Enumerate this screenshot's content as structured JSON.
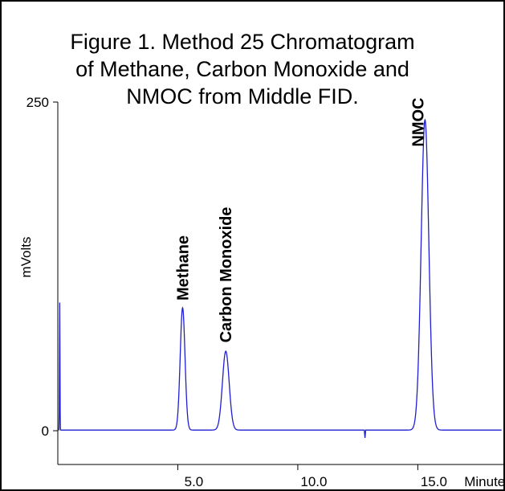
{
  "chart_data": {
    "type": "line",
    "title": "Figure 1. Method 25 Chromatogram of Methane, Carbon Monoxide and NMOC from Middle FID.",
    "title_lines": [
      "Figure 1. Method 25 Chromatogram",
      "of Methane, Carbon Monoxide and",
      "NMOC from Middle FID."
    ],
    "xlabel": "Minutes",
    "ylabel": "mVolts",
    "xlim": [
      0,
      18.5
    ],
    "ylim": [
      0,
      250
    ],
    "grid": false,
    "x_ticks": [
      {
        "value": 5.0,
        "label": "5.0"
      },
      {
        "value": 10.0,
        "label": "10.0"
      },
      {
        "value": 15.0,
        "label": "15.0"
      }
    ],
    "y_ticks": [
      {
        "value": 0,
        "label": "0"
      },
      {
        "value": 250,
        "label": "250"
      }
    ],
    "series": [
      {
        "color": "#1f1fd1",
        "baseline": 0.5,
        "peaks": [
          {
            "x": 0.08,
            "height": 97,
            "sigma": 0.01
          },
          {
            "x": 5.2,
            "height": 93,
            "sigma": 0.1
          },
          {
            "x": 7.0,
            "height": 60,
            "sigma": 0.14
          },
          {
            "x": 15.3,
            "height": 236,
            "sigma": 0.16
          }
        ],
        "disturbances": [
          {
            "x": 12.8,
            "height": -6
          }
        ]
      }
    ],
    "annotations": [
      {
        "text": "Methane",
        "x": 5.2,
        "y": 99
      },
      {
        "text": "Carbon Monoxide",
        "x": 7.0,
        "y": 67
      },
      {
        "text": "NMOC",
        "x": 15.0,
        "y": 216
      }
    ]
  }
}
